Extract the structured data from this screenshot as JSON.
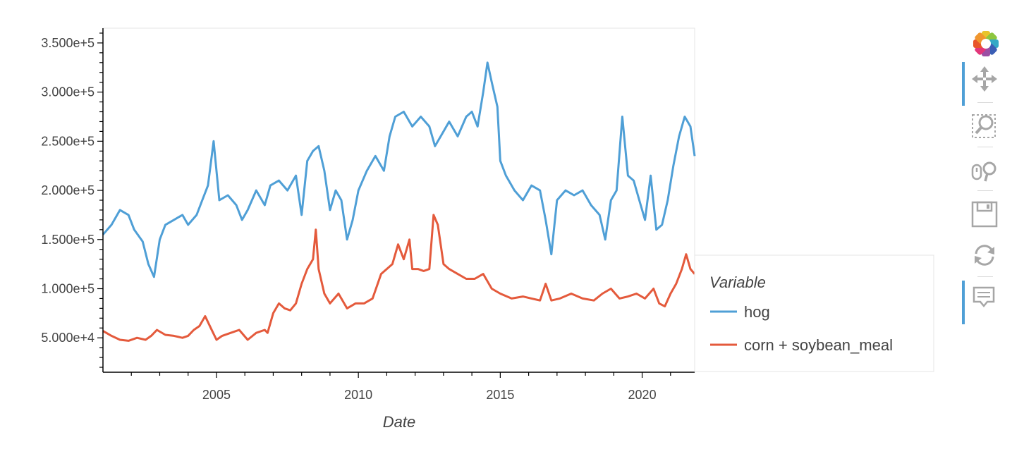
{
  "chart_data": {
    "type": "line",
    "xlabel": "Date",
    "ylabel": "",
    "xlim": [
      2001.0,
      2021.85
    ],
    "ylim": [
      15000,
      365000
    ],
    "x_ticks": [
      2005,
      2010,
      2015,
      2020
    ],
    "x_tick_labels": [
      "2005",
      "2010",
      "2015",
      "2020"
    ],
    "y_ticks": [
      50000,
      100000,
      150000,
      200000,
      250000,
      300000,
      350000
    ],
    "y_tick_labels": [
      "5.000e+4",
      "1.000e+5",
      "1.500e+5",
      "2.000e+5",
      "2.500e+5",
      "3.000e+5",
      "3.500e+5"
    ],
    "legend": {
      "title": "Variable",
      "placement": "right"
    },
    "series": [
      {
        "name": "hog",
        "color": "#4f9fd6",
        "x": [
          2001.0,
          2001.3,
          2001.6,
          2001.9,
          2002.1,
          2002.4,
          2002.6,
          2002.8,
          2003.0,
          2003.2,
          2003.5,
          2003.8,
          2004.0,
          2004.3,
          2004.5,
          2004.7,
          2004.9,
          2005.1,
          2005.4,
          2005.7,
          2005.9,
          2006.1,
          2006.4,
          2006.7,
          2006.9,
          2007.2,
          2007.5,
          2007.8,
          2008.0,
          2008.2,
          2008.4,
          2008.6,
          2008.8,
          2009.0,
          2009.2,
          2009.4,
          2009.6,
          2009.8,
          2010.0,
          2010.3,
          2010.6,
          2010.9,
          2011.1,
          2011.3,
          2011.6,
          2011.9,
          2012.2,
          2012.5,
          2012.7,
          2012.9,
          2013.2,
          2013.5,
          2013.8,
          2014.0,
          2014.2,
          2014.4,
          2014.55,
          2014.7,
          2014.9,
          2015.0,
          2015.2,
          2015.5,
          2015.8,
          2016.1,
          2016.4,
          2016.6,
          2016.8,
          2017.0,
          2017.3,
          2017.6,
          2017.9,
          2018.2,
          2018.5,
          2018.7,
          2018.9,
          2019.1,
          2019.3,
          2019.5,
          2019.7,
          2019.9,
          2020.1,
          2020.3,
          2020.5,
          2020.7,
          2020.9,
          2021.1,
          2021.3,
          2021.5,
          2021.7,
          2021.85
        ],
        "y": [
          155000,
          165000,
          180000,
          175000,
          160000,
          148000,
          125000,
          112000,
          150000,
          165000,
          170000,
          175000,
          165000,
          175000,
          190000,
          205000,
          250000,
          190000,
          195000,
          185000,
          170000,
          180000,
          200000,
          185000,
          205000,
          210000,
          200000,
          215000,
          175000,
          230000,
          240000,
          245000,
          220000,
          180000,
          200000,
          190000,
          150000,
          170000,
          200000,
          220000,
          235000,
          220000,
          255000,
          275000,
          280000,
          265000,
          275000,
          265000,
          245000,
          255000,
          270000,
          255000,
          275000,
          280000,
          265000,
          300000,
          330000,
          310000,
          285000,
          230000,
          215000,
          200000,
          190000,
          205000,
          200000,
          170000,
          135000,
          190000,
          200000,
          195000,
          200000,
          185000,
          175000,
          150000,
          190000,
          200000,
          275000,
          215000,
          210000,
          190000,
          170000,
          215000,
          160000,
          165000,
          190000,
          225000,
          255000,
          275000,
          265000,
          235000
        ]
      },
      {
        "name": "corn + soybean_meal",
        "color": "#e45a3c",
        "x": [
          2001.0,
          2001.3,
          2001.6,
          2001.9,
          2002.2,
          2002.5,
          2002.7,
          2002.9,
          2003.2,
          2003.5,
          2003.8,
          2004.0,
          2004.2,
          2004.4,
          2004.6,
          2004.8,
          2005.0,
          2005.2,
          2005.5,
          2005.8,
          2006.1,
          2006.4,
          2006.7,
          2006.8,
          2007.0,
          2007.2,
          2007.4,
          2007.6,
          2007.8,
          2008.0,
          2008.2,
          2008.4,
          2008.5,
          2008.6,
          2008.8,
          2009.0,
          2009.3,
          2009.6,
          2009.9,
          2010.2,
          2010.5,
          2010.8,
          2011.0,
          2011.2,
          2011.4,
          2011.6,
          2011.8,
          2011.9,
          2012.1,
          2012.3,
          2012.5,
          2012.65,
          2012.8,
          2013.0,
          2013.2,
          2013.5,
          2013.8,
          2014.1,
          2014.4,
          2014.7,
          2015.0,
          2015.4,
          2015.8,
          2016.1,
          2016.4,
          2016.6,
          2016.8,
          2017.1,
          2017.5,
          2017.9,
          2018.3,
          2018.6,
          2018.9,
          2019.2,
          2019.5,
          2019.8,
          2020.1,
          2020.4,
          2020.6,
          2020.8,
          2021.0,
          2021.2,
          2021.4,
          2021.55,
          2021.7,
          2021.85
        ],
        "y": [
          57000,
          52000,
          48000,
          47000,
          50000,
          48000,
          52000,
          58000,
          53000,
          52000,
          50000,
          52000,
          58000,
          62000,
          72000,
          60000,
          48000,
          52000,
          55000,
          58000,
          48000,
          55000,
          58000,
          55000,
          75000,
          85000,
          80000,
          78000,
          85000,
          105000,
          120000,
          130000,
          160000,
          120000,
          95000,
          85000,
          95000,
          80000,
          85000,
          85000,
          90000,
          115000,
          120000,
          125000,
          145000,
          130000,
          150000,
          120000,
          120000,
          118000,
          120000,
          175000,
          165000,
          125000,
          120000,
          115000,
          110000,
          110000,
          115000,
          100000,
          95000,
          90000,
          92000,
          90000,
          88000,
          105000,
          88000,
          90000,
          95000,
          90000,
          88000,
          95000,
          100000,
          90000,
          92000,
          95000,
          90000,
          100000,
          85000,
          82000,
          95000,
          105000,
          120000,
          135000,
          120000,
          115000
        ]
      }
    ]
  },
  "toolbar": {
    "logo": "bokeh-logo-icon",
    "tools": [
      "pan-icon",
      "box-zoom-icon",
      "wheel-zoom-icon",
      "save-icon",
      "reset-icon",
      "hover-icon"
    ]
  }
}
